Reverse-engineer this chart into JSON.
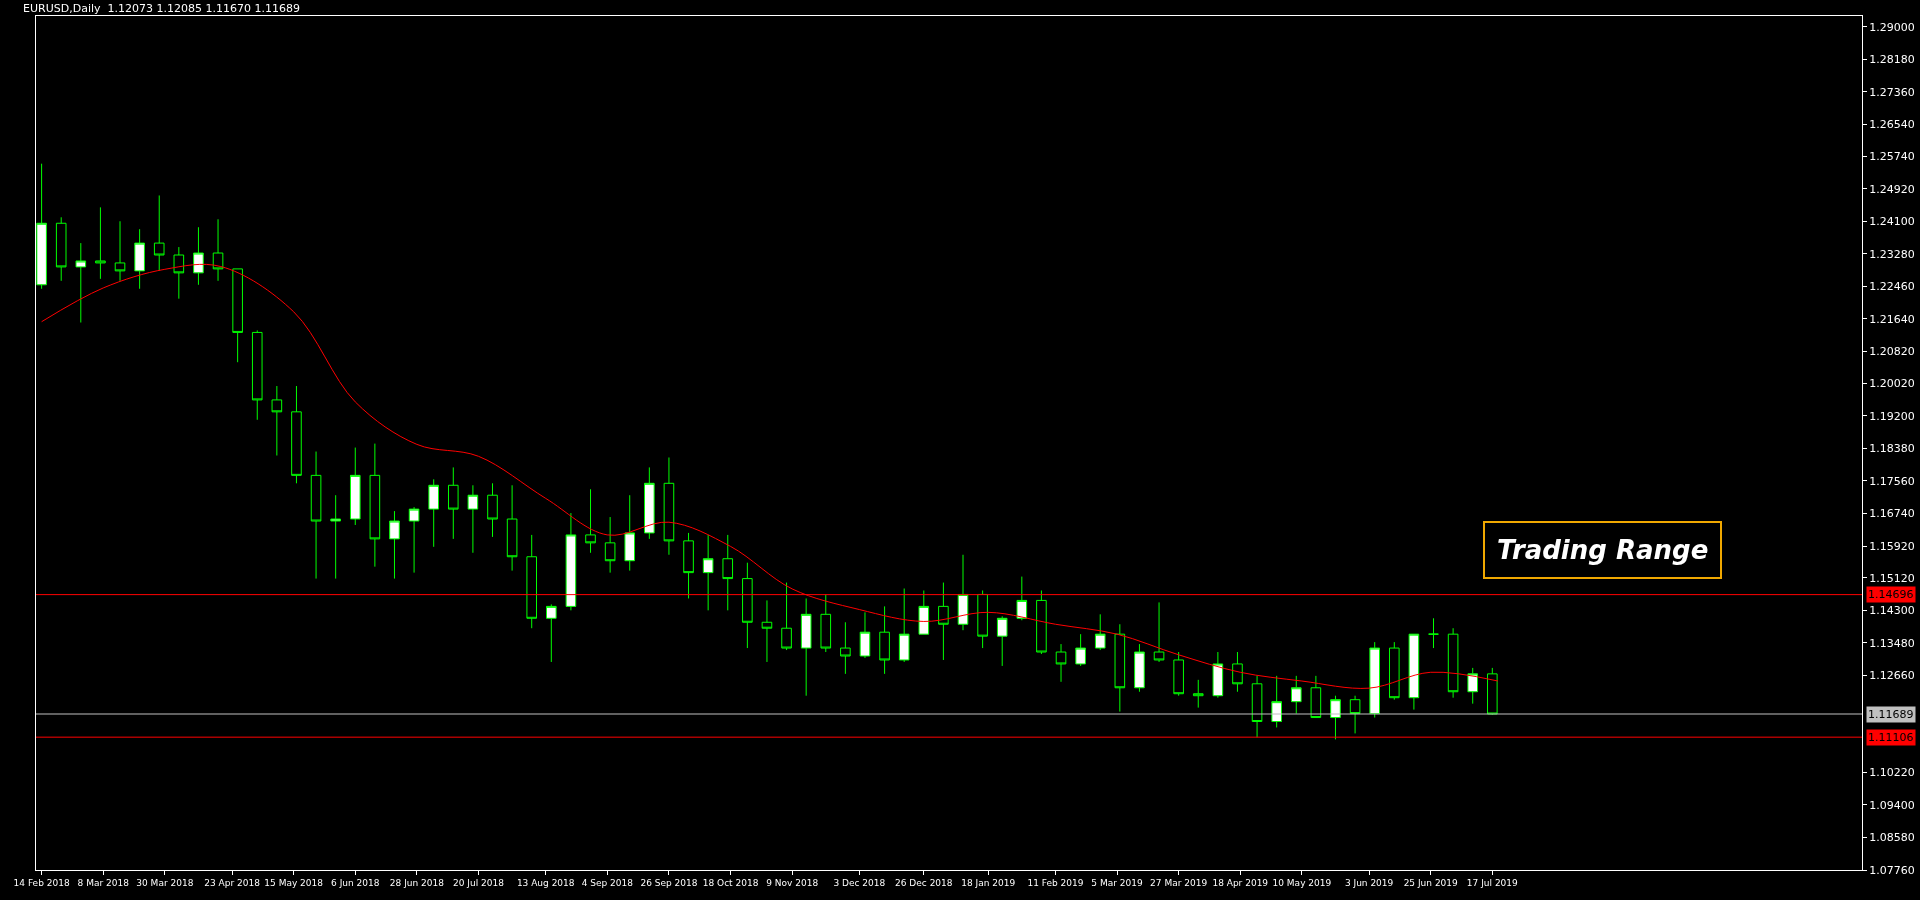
{
  "chart_data": {
    "type": "candlestick",
    "title": "EURUSD,Daily  1.12073 1.12085 1.11670 1.11689",
    "color": "#00ff00",
    "x": [
      "2018-02-14",
      "2018-02-21",
      "2018-02-28",
      "2018-03-07",
      "2018-03-14",
      "2018-03-21",
      "2018-03-28",
      "2018-04-04",
      "2018-04-11",
      "2018-04-18",
      "2018-04-25",
      "2018-05-02",
      "2018-05-09",
      "2018-05-16",
      "2018-05-23",
      "2018-05-30",
      "2018-06-06",
      "2018-06-13",
      "2018-06-20",
      "2018-06-27",
      "2018-07-04",
      "2018-07-11",
      "2018-07-18",
      "2018-07-25",
      "2018-08-01",
      "2018-08-08",
      "2018-08-15",
      "2018-08-22",
      "2018-08-29",
      "2018-09-05",
      "2018-09-12",
      "2018-09-19",
      "2018-09-26",
      "2018-10-03",
      "2018-10-10",
      "2018-10-17",
      "2018-10-24",
      "2018-10-31",
      "2018-11-07",
      "2018-11-14",
      "2018-11-21",
      "2018-11-28",
      "2018-12-05",
      "2018-12-12",
      "2018-12-19",
      "2018-12-26",
      "2019-01-02",
      "2019-01-09",
      "2019-01-16",
      "2019-01-23",
      "2019-01-30",
      "2019-02-06",
      "2019-02-13",
      "2019-02-20",
      "2019-02-27",
      "2019-03-06",
      "2019-03-13",
      "2019-03-20",
      "2019-03-27",
      "2019-04-03",
      "2019-04-10",
      "2019-04-17",
      "2019-04-24",
      "2019-05-01",
      "2019-05-08",
      "2019-05-15",
      "2019-05-22",
      "2019-05-29",
      "2019-06-05",
      "2019-06-12",
      "2019-06-19",
      "2019-06-26",
      "2019-07-03",
      "2019-07-10",
      "2019-07-17"
    ],
    "ohlc": [
      [
        1.225,
        1.2555,
        1.224,
        1.2405
      ],
      [
        1.2405,
        1.242,
        1.226,
        1.2295
      ],
      [
        1.2295,
        1.2355,
        1.2155,
        1.231
      ],
      [
        1.231,
        1.2445,
        1.2265,
        1.2305
      ],
      [
        1.2305,
        1.241,
        1.226,
        1.2285
      ],
      [
        1.2285,
        1.239,
        1.224,
        1.2355
      ],
      [
        1.2355,
        1.2475,
        1.2285,
        1.2325
      ],
      [
        1.2325,
        1.2345,
        1.2215,
        1.228
      ],
      [
        1.228,
        1.2395,
        1.225,
        1.233
      ],
      [
        1.233,
        1.2415,
        1.226,
        1.229
      ],
      [
        1.229,
        1.229,
        1.2055,
        1.213
      ],
      [
        1.213,
        1.2135,
        1.191,
        1.196
      ],
      [
        1.196,
        1.1995,
        1.182,
        1.193
      ],
      [
        1.193,
        1.1995,
        1.175,
        1.177
      ],
      [
        1.177,
        1.183,
        1.151,
        1.1655
      ],
      [
        1.1655,
        1.172,
        1.151,
        1.166
      ],
      [
        1.166,
        1.184,
        1.1645,
        1.177
      ],
      [
        1.177,
        1.185,
        1.154,
        1.161
      ],
      [
        1.161,
        1.168,
        1.151,
        1.1655
      ],
      [
        1.1655,
        1.169,
        1.1525,
        1.1685
      ],
      [
        1.1685,
        1.176,
        1.159,
        1.1745
      ],
      [
        1.1745,
        1.179,
        1.161,
        1.1685
      ],
      [
        1.1685,
        1.1745,
        1.1575,
        1.172
      ],
      [
        1.172,
        1.175,
        1.1615,
        1.166
      ],
      [
        1.166,
        1.1745,
        1.153,
        1.1565
      ],
      [
        1.1565,
        1.162,
        1.1385,
        1.141
      ],
      [
        1.141,
        1.1445,
        1.13,
        1.144
      ],
      [
        1.144,
        1.1675,
        1.143,
        1.162
      ],
      [
        1.162,
        1.1735,
        1.1575,
        1.16
      ],
      [
        1.16,
        1.1665,
        1.1525,
        1.1555
      ],
      [
        1.1555,
        1.172,
        1.153,
        1.1625
      ],
      [
        1.1625,
        1.179,
        1.161,
        1.175
      ],
      [
        1.175,
        1.1815,
        1.157,
        1.1605
      ],
      [
        1.1605,
        1.1625,
        1.146,
        1.1525
      ],
      [
        1.1525,
        1.162,
        1.143,
        1.156
      ],
      [
        1.156,
        1.162,
        1.143,
        1.151
      ],
      [
        1.151,
        1.155,
        1.1335,
        1.14
      ],
      [
        1.14,
        1.1455,
        1.13,
        1.1385
      ],
      [
        1.1385,
        1.15,
        1.133,
        1.1335
      ],
      [
        1.1335,
        1.146,
        1.1215,
        1.142
      ],
      [
        1.142,
        1.147,
        1.1325,
        1.1335
      ],
      [
        1.1335,
        1.14,
        1.127,
        1.1315
      ],
      [
        1.1315,
        1.1425,
        1.131,
        1.1375
      ],
      [
        1.1375,
        1.144,
        1.127,
        1.1305
      ],
      [
        1.1305,
        1.1485,
        1.13,
        1.137
      ],
      [
        1.137,
        1.148,
        1.137,
        1.144
      ],
      [
        1.144,
        1.15,
        1.1305,
        1.1395
      ],
      [
        1.1395,
        1.157,
        1.138,
        1.147
      ],
      [
        1.147,
        1.148,
        1.1335,
        1.1365
      ],
      [
        1.1365,
        1.1415,
        1.129,
        1.141
      ],
      [
        1.141,
        1.1515,
        1.1405,
        1.1455
      ],
      [
        1.1455,
        1.148,
        1.132,
        1.1325
      ],
      [
        1.1325,
        1.1345,
        1.125,
        1.1295
      ],
      [
        1.1295,
        1.137,
        1.129,
        1.1335
      ],
      [
        1.1335,
        1.142,
        1.133,
        1.137
      ],
      [
        1.137,
        1.1395,
        1.1175,
        1.1235
      ],
      [
        1.1235,
        1.1345,
        1.1225,
        1.1325
      ],
      [
        1.1325,
        1.145,
        1.13,
        1.1305
      ],
      [
        1.1305,
        1.1325,
        1.1215,
        1.122
      ],
      [
        1.122,
        1.1255,
        1.1185,
        1.1215
      ],
      [
        1.1215,
        1.1325,
        1.121,
        1.1295
      ],
      [
        1.1295,
        1.1325,
        1.1225,
        1.1245
      ],
      [
        1.1245,
        1.1265,
        1.111,
        1.115
      ],
      [
        1.115,
        1.1265,
        1.1135,
        1.12
      ],
      [
        1.12,
        1.1265,
        1.117,
        1.1235
      ],
      [
        1.1235,
        1.1265,
        1.116,
        1.116
      ],
      [
        1.116,
        1.1215,
        1.1105,
        1.1205
      ],
      [
        1.1205,
        1.1215,
        1.112,
        1.117
      ],
      [
        1.117,
        1.135,
        1.116,
        1.1335
      ],
      [
        1.1335,
        1.135,
        1.1205,
        1.121
      ],
      [
        1.121,
        1.137,
        1.118,
        1.137
      ],
      [
        1.137,
        1.141,
        1.1335,
        1.137
      ],
      [
        1.137,
        1.1385,
        1.121,
        1.1225
      ],
      [
        1.1225,
        1.1285,
        1.1195,
        1.127
      ],
      [
        1.127,
        1.1285,
        1.1167,
        1.11689
      ]
    ],
    "series": [
      {
        "type": "line",
        "color": "#ff0000",
        "x": [
          "2018-02-14",
          "2018-03-08",
          "2018-03-30",
          "2018-04-19",
          "2018-05-15",
          "2018-06-06",
          "2018-06-28",
          "2018-07-20",
          "2018-08-13",
          "2018-09-04",
          "2018-09-26",
          "2018-10-18",
          "2018-11-09",
          "2018-12-03",
          "2018-12-26",
          "2019-01-18",
          "2019-02-11",
          "2019-03-05",
          "2019-03-27",
          "2019-04-18",
          "2019-05-10",
          "2019-06-03",
          "2019-06-25",
          "2019-07-19"
        ],
        "values": [
          1.2157,
          1.2242,
          1.2289,
          1.2296,
          1.2182,
          1.1955,
          1.1848,
          1.1818,
          1.1712,
          1.162,
          1.1652,
          1.1591,
          1.1484,
          1.1432,
          1.1402,
          1.1425,
          1.1395,
          1.137,
          1.1318,
          1.1274,
          1.1252,
          1.1234,
          1.1274,
          1.1252
        ]
      }
    ],
    "xlim": [
      "2018-02-12",
      "2019-11-26"
    ],
    "xticks": [
      {
        "value": "2018-02-14",
        "label": "14 Feb 2018"
      },
      {
        "value": "2018-03-08",
        "label": "8 Mar 2018"
      },
      {
        "value": "2018-03-30",
        "label": "30 Mar 2018"
      },
      {
        "value": "2018-04-23",
        "label": "23 Apr 2018"
      },
      {
        "value": "2018-05-15",
        "label": "15 May 2018"
      },
      {
        "value": "2018-06-06",
        "label": "6 Jun 2018"
      },
      {
        "value": "2018-06-28",
        "label": "28 Jun 2018"
      },
      {
        "value": "2018-07-20",
        "label": "20 Jul 2018"
      },
      {
        "value": "2018-08-13",
        "label": "13 Aug 2018"
      },
      {
        "value": "2018-09-04",
        "label": "4 Sep 2018"
      },
      {
        "value": "2018-09-26",
        "label": "26 Sep 2018"
      },
      {
        "value": "2018-10-18",
        "label": "18 Oct 2018"
      },
      {
        "value": "2018-11-09",
        "label": "9 Nov 2018"
      },
      {
        "value": "2018-12-03",
        "label": "3 Dec 2018"
      },
      {
        "value": "2018-12-26",
        "label": "26 Dec 2018"
      },
      {
        "value": "2019-01-18",
        "label": "18 Jan 2019"
      },
      {
        "value": "2019-02-11",
        "label": "11 Feb 2019"
      },
      {
        "value": "2019-03-05",
        "label": "5 Mar 2019"
      },
      {
        "value": "2019-03-27",
        "label": "27 Mar 2019"
      },
      {
        "value": "2019-04-18",
        "label": "18 Apr 2019"
      },
      {
        "value": "2019-05-10",
        "label": "10 May 2019"
      },
      {
        "value": "2019-06-03",
        "label": "3 Jun 2019"
      },
      {
        "value": "2019-06-25",
        "label": "25 Jun 2019"
      },
      {
        "value": "2019-07-17",
        "label": "17 Jul 2019"
      }
    ],
    "ylim": [
      1.0776,
      1.2927
    ],
    "yticks": [
      {
        "value": 1.29,
        "label": "1.29000"
      },
      {
        "value": 1.2818,
        "label": "1.28180"
      },
      {
        "value": 1.2736,
        "label": "1.27360"
      },
      {
        "value": 1.2654,
        "label": "1.26540"
      },
      {
        "value": 1.2574,
        "label": "1.25740"
      },
      {
        "value": 1.2492,
        "label": "1.24920"
      },
      {
        "value": 1.241,
        "label": "1.24100"
      },
      {
        "value": 1.2328,
        "label": "1.23280"
      },
      {
        "value": 1.2246,
        "label": "1.22460"
      },
      {
        "value": 1.2164,
        "label": "1.21640"
      },
      {
        "value": 1.2082,
        "label": "1.20820"
      },
      {
        "value": 1.2002,
        "label": "1.20020"
      },
      {
        "value": 1.192,
        "label": "1.19200"
      },
      {
        "value": 1.1838,
        "label": "1.18380"
      },
      {
        "value": 1.1756,
        "label": "1.17560"
      },
      {
        "value": 1.1674,
        "label": "1.16740"
      },
      {
        "value": 1.1592,
        "label": "1.15920"
      },
      {
        "value": 1.1512,
        "label": "1.15120"
      },
      {
        "value": 1.143,
        "label": "1.14300"
      },
      {
        "value": 1.1348,
        "label": "1.13480"
      },
      {
        "value": 1.1266,
        "label": "1.12660"
      },
      {
        "value": 1.1022,
        "label": "1.10220"
      },
      {
        "value": 1.094,
        "label": "1.09400"
      },
      {
        "value": 1.0858,
        "label": "1.08580"
      },
      {
        "value": 1.0776,
        "label": "1.07760"
      }
    ],
    "ref_lines": [
      {
        "axis": "y",
        "value": 1.14696,
        "label": "1.14696",
        "color": "#ff0000"
      },
      {
        "axis": "y",
        "value": 1.11689,
        "label": "1.11689",
        "color": "#c0c0c0"
      },
      {
        "axis": "y",
        "value": 1.11106,
        "label": "1.11106",
        "color": "#ff0000"
      }
    ],
    "annotations": [
      "Trading Range"
    ]
  }
}
